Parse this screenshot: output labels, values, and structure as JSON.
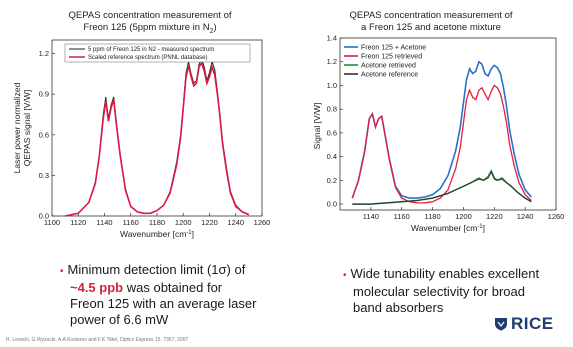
{
  "left_panel": {
    "title_line1": "QEPAS concentration measurement of",
    "title_line2": "Freon 125 (5ppm mixture in N",
    "title_sub": "2",
    "title_end": ")"
  },
  "right_panel": {
    "title_line1": "QEPAS concentration measurement of",
    "title_line2": "a Freon 125 and acetone mixture"
  },
  "bullets": {
    "left_prefix": "Minimum detection limit (1σ) of",
    "left_highlight": "~4.5 ppb",
    "left_rest1": "was obtained for",
    "left_rest2": "Freon 125 with an average laser",
    "left_rest3": "power of 6.6 mW",
    "right_line1": "Wide tunability enables excellent",
    "right_line2": "molecular selectivity for broad",
    "right_line3": "band absorbers"
  },
  "footer": "R. Lewicki, G.Wysocki, A.A Kosterev and F.K Tittel, Optics Express 15, 7357, 2007",
  "logo_text": "RICE",
  "colors": {
    "measured": "#222222",
    "reference": "#d81b45",
    "freon_acetone": "#2c6fc9",
    "freon_retrieved": "#e0203c",
    "acetone_retrieved": "#2e8b3a",
    "acetone_reference": "#333333",
    "highlight": "#d0263c",
    "logo": "#1f3d73"
  },
  "chart_data": [
    {
      "type": "line",
      "title": "QEPAS concentration measurement of Freon 125 (5ppm mixture in N2)",
      "xlabel": "Wavenumber [cm-1]",
      "ylabel": "Laser power normalized QEPAS signal [V/W]",
      "xlim": [
        1100,
        1260
      ],
      "ylim": [
        0,
        1.3
      ],
      "xticks": [
        "1100",
        "1120",
        "1140",
        "1160",
        "1180",
        "1200",
        "1220",
        "1240",
        "1260"
      ],
      "yticks": [
        "0.0",
        "0.3",
        "0.6",
        "0.9",
        "1.2"
      ],
      "legend_position": "top",
      "series": [
        {
          "name": "5 ppm of Freon 125 in N2 - measured spectrum",
          "x": [
            1110,
            1120,
            1128,
            1133,
            1136,
            1139,
            1141,
            1143,
            1145,
            1147,
            1149,
            1152,
            1156,
            1160,
            1165,
            1170,
            1175,
            1180,
            1185,
            1190,
            1195,
            1198,
            1200,
            1202,
            1204,
            1206,
            1208,
            1210,
            1212,
            1214,
            1216,
            1218,
            1220,
            1222,
            1224,
            1226,
            1228,
            1230,
            1233,
            1236,
            1240,
            1245,
            1250
          ],
          "y": [
            0.0,
            0.02,
            0.1,
            0.25,
            0.45,
            0.75,
            0.88,
            0.72,
            0.82,
            0.88,
            0.7,
            0.45,
            0.2,
            0.07,
            0.03,
            0.02,
            0.02,
            0.04,
            0.08,
            0.18,
            0.4,
            0.6,
            0.82,
            1.05,
            1.14,
            1.05,
            0.98,
            1.0,
            1.12,
            1.16,
            1.1,
            1.0,
            1.06,
            1.14,
            1.08,
            0.92,
            0.75,
            0.55,
            0.35,
            0.18,
            0.08,
            0.03,
            0.01
          ]
        },
        {
          "name": "Scaled reference spectrum (PNNL database)",
          "x": [
            1110,
            1120,
            1128,
            1133,
            1136,
            1139,
            1141,
            1143,
            1145,
            1147,
            1149,
            1152,
            1156,
            1160,
            1165,
            1170,
            1175,
            1180,
            1185,
            1190,
            1195,
            1198,
            1200,
            1202,
            1204,
            1206,
            1208,
            1210,
            1212,
            1214,
            1216,
            1218,
            1220,
            1222,
            1224,
            1226,
            1228,
            1230,
            1233,
            1236,
            1240,
            1245,
            1250
          ],
          "y": [
            0.0,
            0.02,
            0.1,
            0.24,
            0.44,
            0.72,
            0.85,
            0.7,
            0.8,
            0.86,
            0.68,
            0.44,
            0.19,
            0.07,
            0.03,
            0.02,
            0.02,
            0.04,
            0.08,
            0.17,
            0.38,
            0.58,
            0.8,
            1.02,
            1.11,
            1.03,
            0.96,
            0.98,
            1.1,
            1.13,
            1.07,
            0.98,
            1.03,
            1.1,
            1.04,
            0.9,
            0.73,
            0.53,
            0.33,
            0.17,
            0.07,
            0.03,
            0.01
          ]
        }
      ]
    },
    {
      "type": "line",
      "title": "QEPAS concentration measurement of a Freon 125 and acetone mixture",
      "xlabel": "Wavenumber [cm-1]",
      "ylabel": "Signal [V/W]",
      "xlim": [
        1120,
        1260
      ],
      "ylim": [
        -0.05,
        1.4
      ],
      "xticks": [
        "1140",
        "1160",
        "1180",
        "1200",
        "1220",
        "1240",
        "1260"
      ],
      "yticks": [
        "0.0",
        "0.2",
        "0.4",
        "0.6",
        "0.8",
        "1.0",
        "1.2",
        "1.4"
      ],
      "legend_position": "top-left",
      "series": [
        {
          "name": "Freon 125 + Acetone",
          "x": [
            1128,
            1132,
            1136,
            1139,
            1141,
            1143,
            1145,
            1147,
            1149,
            1152,
            1156,
            1160,
            1165,
            1170,
            1175,
            1180,
            1185,
            1190,
            1195,
            1198,
            1200,
            1202,
            1204,
            1206,
            1208,
            1210,
            1212,
            1214,
            1216,
            1218,
            1220,
            1222,
            1224,
            1226,
            1228,
            1230,
            1233,
            1236,
            1240,
            1244
          ],
          "y": [
            0.05,
            0.2,
            0.45,
            0.72,
            0.76,
            0.65,
            0.72,
            0.74,
            0.6,
            0.38,
            0.15,
            0.07,
            0.05,
            0.05,
            0.06,
            0.08,
            0.13,
            0.24,
            0.45,
            0.65,
            0.85,
            1.05,
            1.14,
            1.1,
            1.12,
            1.2,
            1.18,
            1.1,
            1.08,
            1.14,
            1.17,
            1.15,
            1.1,
            0.98,
            0.82,
            0.62,
            0.42,
            0.25,
            0.12,
            0.06
          ]
        },
        {
          "name": "Freon 125 retrieved",
          "x": [
            1128,
            1132,
            1136,
            1139,
            1141,
            1143,
            1145,
            1147,
            1149,
            1152,
            1156,
            1160,
            1165,
            1170,
            1175,
            1180,
            1185,
            1190,
            1195,
            1198,
            1200,
            1202,
            1204,
            1206,
            1208,
            1210,
            1212,
            1214,
            1216,
            1218,
            1220,
            1222,
            1224,
            1226,
            1228,
            1230,
            1233,
            1236,
            1240,
            1244
          ],
          "y": [
            0.05,
            0.2,
            0.44,
            0.72,
            0.76,
            0.65,
            0.72,
            0.74,
            0.6,
            0.37,
            0.14,
            0.05,
            0.02,
            0.01,
            0.01,
            0.02,
            0.05,
            0.12,
            0.3,
            0.48,
            0.68,
            0.88,
            0.96,
            0.9,
            0.88,
            0.96,
            0.98,
            0.93,
            0.88,
            0.95,
            1.0,
            0.98,
            0.93,
            0.82,
            0.68,
            0.5,
            0.32,
            0.18,
            0.08,
            0.03
          ]
        },
        {
          "name": "Acetone retrieved",
          "x": [
            1128,
            1140,
            1150,
            1160,
            1170,
            1180,
            1190,
            1195,
            1200,
            1205,
            1210,
            1213,
            1216,
            1218,
            1220,
            1222,
            1225,
            1228,
            1231,
            1235,
            1240,
            1244
          ],
          "y": [
            0.0,
            0.0,
            0.01,
            0.02,
            0.03,
            0.05,
            0.09,
            0.12,
            0.15,
            0.18,
            0.22,
            0.2,
            0.23,
            0.28,
            0.22,
            0.2,
            0.22,
            0.18,
            0.15,
            0.1,
            0.05,
            0.02
          ]
        },
        {
          "name": "Acetone reference",
          "x": [
            1128,
            1140,
            1150,
            1160,
            1170,
            1180,
            1190,
            1195,
            1200,
            1205,
            1210,
            1213,
            1216,
            1218,
            1220,
            1222,
            1225,
            1228,
            1231,
            1235,
            1240,
            1244
          ],
          "y": [
            0.0,
            0.0,
            0.01,
            0.02,
            0.03,
            0.05,
            0.09,
            0.12,
            0.15,
            0.18,
            0.21,
            0.2,
            0.22,
            0.27,
            0.21,
            0.2,
            0.21,
            0.18,
            0.15,
            0.1,
            0.05,
            0.02
          ]
        }
      ]
    }
  ]
}
